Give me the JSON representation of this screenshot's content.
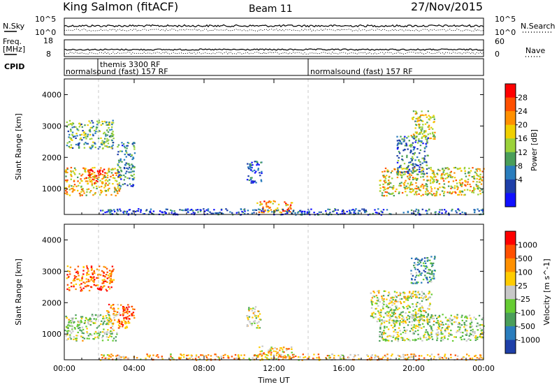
{
  "header": {
    "site": "King Salmon (fitACF)",
    "beam": "Beam 11",
    "date": "27/Nov/2015"
  },
  "strip_labels": {
    "nsky": "N.Sky",
    "nsearch": "N.Search",
    "freq_line1": "Freq.",
    "freq_line2": "[MHz]",
    "nave": "Nave",
    "cpid": "CPID"
  },
  "strip_ticks": {
    "noise_top": "10^5",
    "noise_bottom": "10^0",
    "freq_top": "18",
    "freq_bottom": "8",
    "nave_top": "60",
    "nave_bottom": "0"
  },
  "cpid_labels": {
    "themis": "themis 3300 RF",
    "normal_left": "normalsound (fast) 157 RF",
    "normal_right": "normalsound (fast) 157 RF"
  },
  "chart_data": [
    {
      "type": "heatmap",
      "panel": "power",
      "ylabel": "Slant Range [km]",
      "xlabel": "Time UT",
      "xlim_hours": [
        0,
        24
      ],
      "ylim": [
        180,
        4500
      ],
      "x_ticks": [
        "00:00",
        "04:00",
        "08:00",
        "12:00",
        "16:00",
        "20:00",
        "00:00"
      ],
      "y_ticks": [
        1000,
        2000,
        3000,
        4000
      ],
      "colorbar_label": "Power [dB]",
      "colorbar_ticks": [
        4,
        8,
        12,
        16,
        20,
        24,
        28
      ],
      "colors": [
        "#1010ff",
        "#1e3fa8",
        "#2a7dbd",
        "#4a9e5a",
        "#9bd23a",
        "#f0d000",
        "#ff9000",
        "#ff5000",
        "#ff0000"
      ],
      "regions": [
        {
          "t": [
            0.0,
            3.2
          ],
          "r": [
            800,
            1700
          ],
          "level": 0.62
        },
        {
          "t": [
            1.2,
            2.3
          ],
          "r": [
            1200,
            1650
          ],
          "level": 0.92
        },
        {
          "t": [
            0.1,
            2.8
          ],
          "r": [
            2300,
            3200
          ],
          "level": 0.4
        },
        {
          "t": [
            3.0,
            4.0
          ],
          "r": [
            1100,
            2500
          ],
          "level": 0.3
        },
        {
          "t": [
            10.4,
            11.3
          ],
          "r": [
            1200,
            1900
          ],
          "level": 0.18
        },
        {
          "t": [
            11.0,
            13.0
          ],
          "r": [
            250,
            650
          ],
          "level": 0.75
        },
        {
          "t": [
            2.0,
            24.0
          ],
          "r": [
            190,
            380
          ],
          "level": 0.2
        },
        {
          "t": [
            18.0,
            24.0
          ],
          "r": [
            800,
            1700
          ],
          "level": 0.6
        },
        {
          "t": [
            19.8,
            21.2
          ],
          "r": [
            2600,
            3500
          ],
          "level": 0.55
        },
        {
          "t": [
            19.0,
            20.8
          ],
          "r": [
            1500,
            2700
          ],
          "level": 0.28
        }
      ]
    },
    {
      "type": "heatmap",
      "panel": "velocity",
      "ylabel": "Slant Range [km]",
      "xlabel": "Time UT",
      "xlim_hours": [
        0,
        24
      ],
      "ylim": [
        180,
        4500
      ],
      "x_ticks": [
        "00:00",
        "04:00",
        "08:00",
        "12:00",
        "16:00",
        "20:00",
        "00:00"
      ],
      "y_ticks": [
        1000,
        2000,
        3000,
        4000
      ],
      "colorbar_label": "Velocity [m s^-1]",
      "colorbar_ticks": [
        "1000",
        "500",
        "100",
        "25",
        "-25",
        "-100",
        "-500",
        "-1000"
      ],
      "colors": [
        "#1e3fa8",
        "#2a7dbd",
        "#4a9e5a",
        "#66cc33",
        "#c8c8c8",
        "#ffcc00",
        "#ff9000",
        "#ff5000",
        "#ff0000"
      ],
      "regions": [
        {
          "t": [
            0.0,
            3.0
          ],
          "r": [
            800,
            1650
          ],
          "level": 0.45
        },
        {
          "t": [
            0.1,
            2.8
          ],
          "r": [
            2400,
            3200
          ],
          "level": 0.8
        },
        {
          "t": [
            2.4,
            3.7
          ],
          "r": [
            1200,
            2000
          ],
          "level": 0.7
        },
        {
          "t": [
            3.3,
            4.0
          ],
          "r": [
            1500,
            1900
          ],
          "level": 0.9
        },
        {
          "t": [
            10.4,
            11.2
          ],
          "r": [
            1200,
            1900
          ],
          "level": 0.48
        },
        {
          "t": [
            11.0,
            13.0
          ],
          "r": [
            250,
            650
          ],
          "level": 0.62
        },
        {
          "t": [
            2.0,
            24.0
          ],
          "r": [
            190,
            380
          ],
          "level": 0.65
        },
        {
          "t": [
            18.0,
            24.0
          ],
          "r": [
            800,
            1650
          ],
          "level": 0.45
        },
        {
          "t": [
            19.8,
            21.2
          ],
          "r": [
            2600,
            3500
          ],
          "level": 0.25
        },
        {
          "t": [
            17.5,
            21.0
          ],
          "r": [
            1400,
            2400
          ],
          "level": 0.48
        }
      ]
    }
  ]
}
